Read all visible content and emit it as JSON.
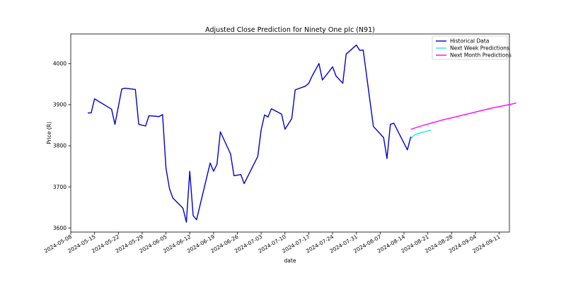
{
  "chart_data": {
    "type": "line",
    "title": "Adjusted Close Prediction for Ninety One plc (N91)",
    "xlabel": "date",
    "ylabel": "Price (R)",
    "x_axis": "date",
    "xlim": [
      "2024-05-08",
      "2024-09-14"
    ],
    "ylim": [
      3590,
      4072
    ],
    "x_ticks": [
      "2024-05-08",
      "2024-05-15",
      "2024-05-22",
      "2024-05-29",
      "2024-06-05",
      "2024-06-12",
      "2024-06-19",
      "2024-06-26",
      "2024-07-03",
      "2024-07-10",
      "2024-07-17",
      "2024-07-24",
      "2024-07-31",
      "2024-08-07",
      "2024-08-14",
      "2024-08-21",
      "2024-08-28",
      "2024-09-04",
      "2024-09-11"
    ],
    "y_ticks": [
      3600,
      3700,
      3800,
      3900,
      4000
    ],
    "grid": false,
    "legend_position": "top-right",
    "series": [
      {
        "name": "Historical Data",
        "color": "#0000cc",
        "points": [
          [
            "2024-05-13",
            3880
          ],
          [
            "2024-05-14",
            3880
          ],
          [
            "2024-05-15",
            3914
          ],
          [
            "2024-05-20",
            3889
          ],
          [
            "2024-05-21",
            3852
          ],
          [
            "2024-05-23",
            3938
          ],
          [
            "2024-05-24",
            3940
          ],
          [
            "2024-05-27",
            3937
          ],
          [
            "2024-05-28",
            3852
          ],
          [
            "2024-05-30",
            3848
          ],
          [
            "2024-05-31",
            3873
          ],
          [
            "2024-06-03",
            3871
          ],
          [
            "2024-06-04",
            3876
          ],
          [
            "2024-06-05",
            3746
          ],
          [
            "2024-06-06",
            3697
          ],
          [
            "2024-06-07",
            3673
          ],
          [
            "2024-06-10",
            3648
          ],
          [
            "2024-06-11",
            3614
          ],
          [
            "2024-06-12",
            3738
          ],
          [
            "2024-06-13",
            3630
          ],
          [
            "2024-06-14",
            3620
          ],
          [
            "2024-06-18",
            3758
          ],
          [
            "2024-06-19",
            3738
          ],
          [
            "2024-06-20",
            3755
          ],
          [
            "2024-06-21",
            3834
          ],
          [
            "2024-06-24",
            3780
          ],
          [
            "2024-06-25",
            3727
          ],
          [
            "2024-06-27",
            3730
          ],
          [
            "2024-06-28",
            3708
          ],
          [
            "2024-07-02",
            3774
          ],
          [
            "2024-07-03",
            3839
          ],
          [
            "2024-07-04",
            3875
          ],
          [
            "2024-07-05",
            3870
          ],
          [
            "2024-07-06",
            3890
          ],
          [
            "2024-07-09",
            3877
          ],
          [
            "2024-07-10",
            3840
          ],
          [
            "2024-07-12",
            3866
          ],
          [
            "2024-07-13",
            3936
          ],
          [
            "2024-07-16",
            3945
          ],
          [
            "2024-07-17",
            3952
          ],
          [
            "2024-07-18",
            3970
          ],
          [
            "2024-07-20",
            4000
          ],
          [
            "2024-07-21",
            3960
          ],
          [
            "2024-07-23",
            3981
          ],
          [
            "2024-07-24",
            3992
          ],
          [
            "2024-07-25",
            3970
          ],
          [
            "2024-07-27",
            3952
          ],
          [
            "2024-07-28",
            4023
          ],
          [
            "2024-07-31",
            4045
          ],
          [
            "2024-08-01",
            4032
          ],
          [
            "2024-08-02",
            4033
          ],
          [
            "2024-08-05",
            3847
          ],
          [
            "2024-08-08",
            3820
          ],
          [
            "2024-08-09",
            3769
          ],
          [
            "2024-08-10",
            3852
          ],
          [
            "2024-08-11",
            3855
          ],
          [
            "2024-08-15",
            3790
          ],
          [
            "2024-08-16",
            3822
          ]
        ]
      },
      {
        "name": "Next Week Predictions",
        "color": "#22e5ee",
        "points": [
          [
            "2024-08-16",
            3817
          ],
          [
            "2024-08-17",
            3826
          ],
          [
            "2024-08-18",
            3829
          ],
          [
            "2024-08-19",
            3832
          ],
          [
            "2024-08-20",
            3834
          ],
          [
            "2024-08-21",
            3836
          ],
          [
            "2024-08-22",
            3838
          ]
        ]
      },
      {
        "name": "Next Month Predictions",
        "color": "#ff00ff",
        "points": [
          [
            "2024-08-16",
            3840
          ],
          [
            "2024-08-19",
            3848
          ],
          [
            "2024-08-22",
            3855
          ],
          [
            "2024-08-25",
            3862
          ],
          [
            "2024-08-28",
            3868
          ],
          [
            "2024-08-31",
            3874
          ],
          [
            "2024-09-03",
            3880
          ],
          [
            "2024-09-06",
            3886
          ],
          [
            "2024-09-09",
            3892
          ],
          [
            "2024-09-12",
            3897
          ],
          [
            "2024-09-15",
            3902
          ],
          [
            "2024-09-16",
            3904
          ]
        ]
      }
    ]
  }
}
